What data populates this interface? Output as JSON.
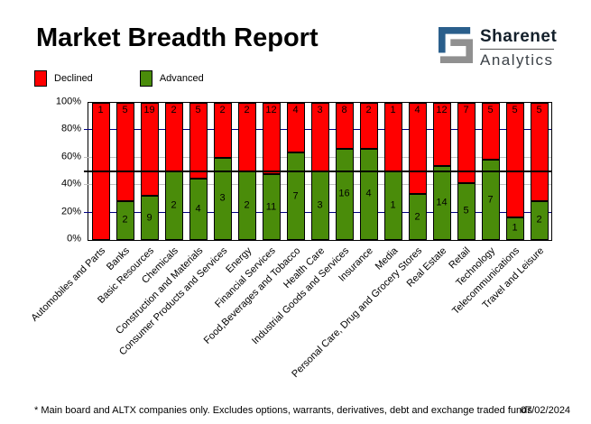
{
  "header": {
    "title": "Market Breadth Report",
    "logo": {
      "line1": "Sharenet",
      "line2": "Analytics",
      "blue": "#2a5f8c",
      "gray": "#909090"
    }
  },
  "legend": {
    "items": [
      {
        "label": "Declined",
        "color": "#ff0000"
      },
      {
        "label": "Advanced",
        "color": "#4a8c0a"
      }
    ]
  },
  "chart_data": {
    "type": "bar",
    "stacked": true,
    "normalized": "percent",
    "title": "Market Breadth Report",
    "categories": [
      "Automobiles and Parts",
      "Banks",
      "Basic Resources",
      "Chemicals",
      "Construction and Materials",
      "Consumer Products and Services",
      "Energy",
      "Financial Services",
      "Food,Beverages and Tobacco",
      "Health Care",
      "Industrial Goods and Services",
      "Insurance",
      "Media",
      "Personal Care, Drug and Grocery Stores",
      "Real Estate",
      "Retail",
      "Technology",
      "Telecommunications",
      "Travel and Leisure"
    ],
    "series": [
      {
        "name": "Declined",
        "color": "#ff0000",
        "values": [
          1,
          5,
          19,
          2,
          5,
          2,
          2,
          12,
          4,
          3,
          8,
          2,
          1,
          4,
          12,
          7,
          5,
          5,
          5
        ]
      },
      {
        "name": "Advanced",
        "color": "#4a8c0a",
        "values": [
          0,
          2,
          9,
          2,
          4,
          3,
          2,
          11,
          7,
          3,
          16,
          4,
          1,
          2,
          14,
          5,
          7,
          1,
          2
        ]
      }
    ],
    "ylim": [
      0,
      100
    ],
    "y_ticks": [
      "0%",
      "20%",
      "40%",
      "60%",
      "80%",
      "100%"
    ],
    "reference_line_percent": 50,
    "grid": "horizontal",
    "legend_position": "top-left"
  },
  "footer": {
    "note": "* Main board and ALTX companies only. Excludes options, warrants, derivatives, debt and exchange traded funds",
    "date": "07/02/2024"
  }
}
